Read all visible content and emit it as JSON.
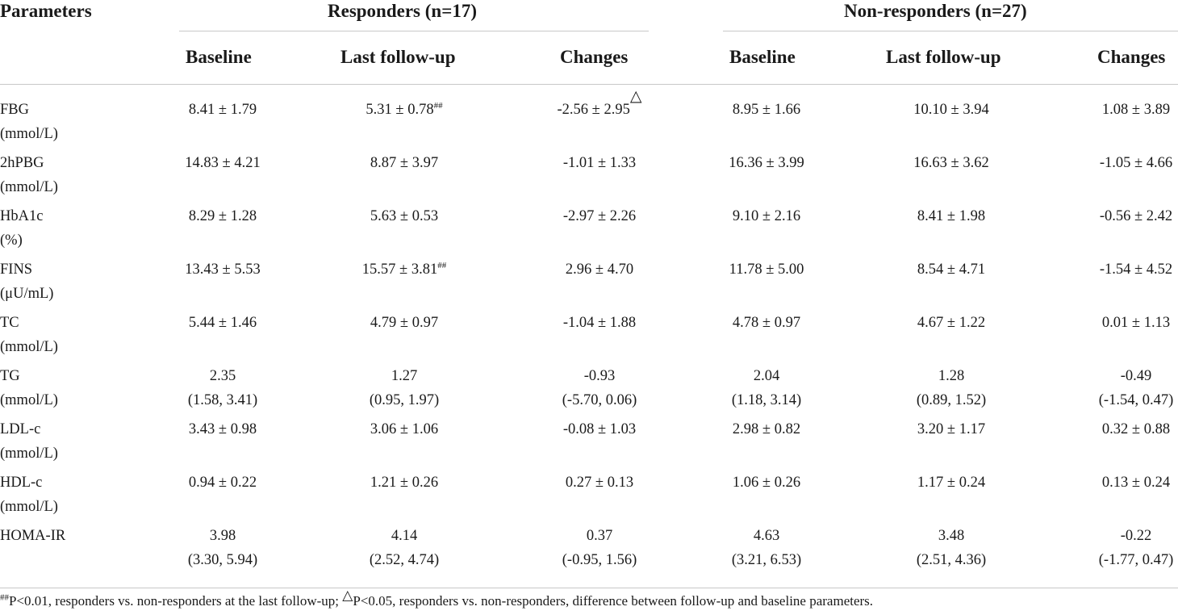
{
  "table": {
    "col_param_header": "Parameters",
    "group_responders": "Responders (n=17)",
    "group_nonresponders": "Non-responders (n=27)",
    "sub_headers": [
      "Baseline",
      "Last follow-up",
      "Changes",
      "Baseline",
      "Last follow-up",
      "Changes"
    ],
    "rows": [
      {
        "name": "FBG",
        "unit": "(mmol/L)",
        "cells": [
          {
            "v": "8.41 ± 1.79"
          },
          {
            "v": "5.31 ± 0.78",
            "sup": "##"
          },
          {
            "v": "-2.56 ± 2.95",
            "tri": "△"
          },
          {
            "v": "8.95 ± 1.66"
          },
          {
            "v": "10.10 ± 3.94"
          },
          {
            "v": "1.08 ± 3.89"
          }
        ]
      },
      {
        "name": "2hPBG",
        "unit": "(mmol/L)",
        "cells": [
          {
            "v": "14.83 ± 4.21"
          },
          {
            "v": "8.87 ± 3.97"
          },
          {
            "v": "-1.01 ± 1.33"
          },
          {
            "v": "16.36 ± 3.99"
          },
          {
            "v": "16.63 ± 3.62"
          },
          {
            "v": "-1.05 ± 4.66"
          }
        ]
      },
      {
        "name": "HbA1c",
        "unit": "(%)",
        "cells": [
          {
            "v": "8.29 ± 1.28"
          },
          {
            "v": "5.63 ± 0.53"
          },
          {
            "v": "-2.97 ± 2.26"
          },
          {
            "v": "9.10 ± 2.16"
          },
          {
            "v": "8.41 ± 1.98"
          },
          {
            "v": "-0.56 ± 2.42"
          }
        ]
      },
      {
        "name": "FINS",
        "unit": "(μU/mL)",
        "cells": [
          {
            "v": "13.43 ± 5.53"
          },
          {
            "v": "15.57 ± 3.81",
            "sup": "##"
          },
          {
            "v": "2.96 ± 4.70"
          },
          {
            "v": "11.78 ± 5.00"
          },
          {
            "v": "8.54 ± 4.71"
          },
          {
            "v": "-1.54 ± 4.52"
          }
        ]
      },
      {
        "name": "TC",
        "unit": "(mmol/L)",
        "cells": [
          {
            "v": "5.44 ± 1.46"
          },
          {
            "v": "4.79 ± 0.97"
          },
          {
            "v": "-1.04 ± 1.88"
          },
          {
            "v": "4.78 ± 0.97"
          },
          {
            "v": "4.67 ± 1.22"
          },
          {
            "v": "0.01 ± 1.13"
          }
        ]
      },
      {
        "name": "TG",
        "unit": "(mmol/L)",
        "cells": [
          {
            "v": "2.35",
            "v2": "(1.58, 3.41)"
          },
          {
            "v": "1.27",
            "v2": "(0.95, 1.97)"
          },
          {
            "v": "-0.93",
            "v2": "(-5.70, 0.06)"
          },
          {
            "v": "2.04",
            "v2": "(1.18, 3.14)"
          },
          {
            "v": "1.28",
            "v2": "(0.89, 1.52)"
          },
          {
            "v": "-0.49",
            "v2": "(-1.54, 0.47)"
          }
        ]
      },
      {
        "name": "LDL-c",
        "unit": "(mmol/L)",
        "cells": [
          {
            "v": "3.43 ± 0.98"
          },
          {
            "v": "3.06 ± 1.06"
          },
          {
            "v": "-0.08 ± 1.03"
          },
          {
            "v": "2.98 ± 0.82"
          },
          {
            "v": "3.20 ± 1.17"
          },
          {
            "v": "0.32 ± 0.88"
          }
        ]
      },
      {
        "name": "HDL-c",
        "unit": "(mmol/L)",
        "cells": [
          {
            "v": "0.94 ± 0.22"
          },
          {
            "v": "1.21 ± 0.26"
          },
          {
            "v": "0.27 ± 0.13"
          },
          {
            "v": "1.06 ± 0.26"
          },
          {
            "v": "1.17 ± 0.24"
          },
          {
            "v": "0.13 ± 0.24"
          }
        ]
      },
      {
        "name": "HOMA-IR",
        "unit": "",
        "cells": [
          {
            "v": "3.98",
            "v2": "(3.30, 5.94)"
          },
          {
            "v": "4.14",
            "v2": "(2.52, 4.74)"
          },
          {
            "v": "0.37",
            "v2": "(-0.95, 1.56)"
          },
          {
            "v": "4.63",
            "v2": "(3.21, 6.53)"
          },
          {
            "v": "3.48",
            "v2": "(2.51, 4.36)"
          },
          {
            "v": "-0.22",
            "v2": "(-1.77, 0.47)"
          }
        ]
      }
    ]
  },
  "footnote": {
    "mark1": "##",
    "text1": "P<0.01, responders vs. non-responders at the last follow-up; ",
    "mark2": "△",
    "text2": "P<0.05, responders vs. non-responders, difference between follow-up and baseline parameters."
  }
}
